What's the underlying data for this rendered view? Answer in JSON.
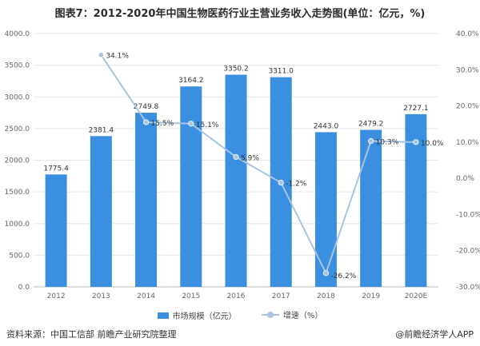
{
  "title": "图表7：2012-2020年中国生物医药行业主营业务收入走势图(单位：亿元，%)",
  "source": "资料来源：中国工信部 前瞻产业研究院整理",
  "brand": "@前瞻经济学人APP",
  "colors": {
    "bar": "#3b8fe0",
    "line": "#a9c4e0",
    "grid": "#e6e6e6",
    "axis": "#666666"
  },
  "chart_data": {
    "type": "bar",
    "categories": [
      "2012",
      "2013",
      "2014",
      "2015",
      "2016",
      "2017",
      "2018",
      "2019",
      "2020E"
    ],
    "series": [
      {
        "name": "市场规模（亿元）",
        "type": "bar",
        "axis": "left",
        "values": [
          1775.4,
          2381.4,
          2749.8,
          3164.2,
          3350.2,
          3311.0,
          2443.0,
          2479.2,
          2727.1
        ],
        "labels": [
          "1775.4",
          "2381.4",
          "2749.8",
          "3164.2",
          "3350.2",
          "3311.0",
          "2443.0",
          "2479.2",
          "2727.1"
        ]
      },
      {
        "name": "增速（%）",
        "type": "line",
        "axis": "right",
        "values": [
          null,
          34.1,
          15.5,
          15.1,
          5.9,
          -1.2,
          -26.2,
          10.3,
          10.0
        ],
        "labels": [
          "",
          "34.1%",
          "15.5%",
          "15.1%",
          "5.9%",
          "-1.2%",
          "-26.2%",
          "10.3%",
          "10.0%"
        ]
      }
    ],
    "y_left": {
      "ticks": [
        "0.0",
        "500.0",
        "1000.0",
        "1500.0",
        "2000.0",
        "2500.0",
        "3000.0",
        "3500.0",
        "4000.0"
      ],
      "lim": [
        0,
        4000
      ]
    },
    "y_right": {
      "ticks": [
        "-30.0%",
        "-20.0%",
        "-10.0%",
        "0.0%",
        "10.0%",
        "20.0%",
        "30.0%",
        "40.0%"
      ],
      "lim": [
        -30,
        40
      ]
    },
    "grid": true,
    "legend": "bottom"
  }
}
